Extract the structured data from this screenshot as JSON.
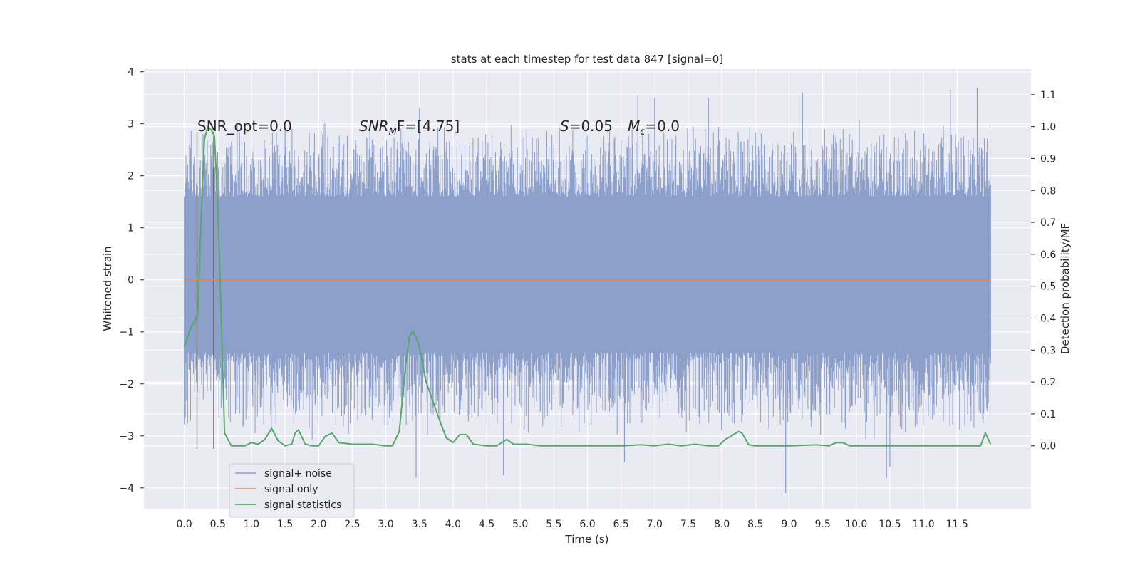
{
  "chart_data": {
    "type": "line",
    "title": "stats at each timestep for test data 847 [signal=0]",
    "xlabel": "Time (s)",
    "ylabel_left": "Whitened strain",
    "ylabel_right": "Detection probability/MF",
    "xlim": [
      -0.6,
      12.6
    ],
    "ylim_left": [
      -4.4,
      4.05
    ],
    "ylim_right": [
      -0.197,
      1.18
    ],
    "x_ticks": [
      "0.0",
      "0.5",
      "1.0",
      "1.5",
      "2.0",
      "2.5",
      "3.0",
      "3.5",
      "4.0",
      "4.5",
      "5.0",
      "5.5",
      "6.0",
      "6.5",
      "7.0",
      "7.5",
      "8.0",
      "8.5",
      "9.0",
      "9.5",
      "10.0",
      "10.5",
      "11.0",
      "11.5"
    ],
    "y_left_ticks": [
      "4",
      "3",
      "2",
      "1",
      "0",
      "−1",
      "−2",
      "−3",
      "−4"
    ],
    "y_right_ticks": [
      "1.1",
      "1.0",
      "0.9",
      "0.8",
      "0.7",
      "0.6",
      "0.5",
      "0.4",
      "0.3",
      "0.2",
      "0.1",
      "0.0"
    ],
    "grid": true,
    "legend_position": "lower-left",
    "annotations": {
      "snr_opt": "SNR_opt=0.0",
      "snr_mf_prefix": "SNR",
      "snr_mf_sub": "M",
      "snr_mf_suffix": "F=[4.75]",
      "s_symbol": "S",
      "s_value": "=0.05",
      "mc_symbol": "M",
      "mc_sub": "c",
      "mc_value": "=0.0"
    },
    "vertical_markers_s": [
      0.19,
      0.44
    ],
    "series": [
      {
        "name": "signal+ noise",
        "color": "#8da0cb",
        "envelope_x": [
          0.0,
          12.0
        ],
        "approx_range": [
          -2.5,
          2.5
        ],
        "peak_spikes": [
          {
            "x": 0.28,
            "y": 2.8
          },
          {
            "x": 1.5,
            "y": 2.9
          },
          {
            "x": 2.07,
            "y": 3.0
          },
          {
            "x": 3.5,
            "y": 3.3
          },
          {
            "x": 6.75,
            "y": 3.55
          },
          {
            "x": 7.0,
            "y": 3.5
          },
          {
            "x": 7.8,
            "y": 3.5
          },
          {
            "x": 9.2,
            "y": 3.6
          },
          {
            "x": 11.4,
            "y": 3.65
          },
          {
            "x": 11.8,
            "y": 3.7
          },
          {
            "x": 3.45,
            "y": -3.8
          },
          {
            "x": 4.75,
            "y": -3.75
          },
          {
            "x": 6.55,
            "y": -3.5
          },
          {
            "x": 8.95,
            "y": -4.1
          },
          {
            "x": 10.45,
            "y": -3.8
          },
          {
            "x": 10.5,
            "y": -3.6
          }
        ]
      },
      {
        "name": "signal only",
        "color": "#dd8452",
        "x": [
          0.0,
          12.0
        ],
        "y": [
          0.0,
          0.0
        ]
      },
      {
        "name": "signal statistics",
        "color": "#55a868",
        "x": [
          0.0,
          0.1,
          0.2,
          0.25,
          0.3,
          0.35,
          0.4,
          0.45,
          0.5,
          0.55,
          0.6,
          0.7,
          0.9,
          1.0,
          1.1,
          1.2,
          1.3,
          1.4,
          1.5,
          1.6,
          1.65,
          1.7,
          1.8,
          1.9,
          2.0,
          2.1,
          2.2,
          2.3,
          2.5,
          2.8,
          3.0,
          3.1,
          3.2,
          3.3,
          3.35,
          3.4,
          3.45,
          3.5,
          3.6,
          3.7,
          3.8,
          3.9,
          4.0,
          4.1,
          4.2,
          4.3,
          4.5,
          4.65,
          4.8,
          4.9,
          5.1,
          5.3,
          6.0,
          6.5,
          6.8,
          7.0,
          7.2,
          7.4,
          7.6,
          7.8,
          7.95,
          8.05,
          8.15,
          8.25,
          8.3,
          8.4,
          8.5,
          8.8,
          9.0,
          9.4,
          9.6,
          9.7,
          9.8,
          9.9,
          10.0,
          10.4,
          10.6,
          11.0,
          11.5,
          11.85,
          11.92,
          12.0
        ],
        "y": [
          0.31,
          0.37,
          0.41,
          0.7,
          0.96,
          1.0,
          0.99,
          0.97,
          0.74,
          0.4,
          0.04,
          0.0,
          0.0,
          0.01,
          0.005,
          0.02,
          0.055,
          0.015,
          0.0,
          0.005,
          0.04,
          0.05,
          0.005,
          0.0,
          0.0,
          0.03,
          0.04,
          0.01,
          0.005,
          0.005,
          0.0,
          0.0,
          0.045,
          0.26,
          0.34,
          0.36,
          0.34,
          0.31,
          0.2,
          0.14,
          0.08,
          0.025,
          0.01,
          0.035,
          0.035,
          0.005,
          0.0,
          0.0,
          0.02,
          0.005,
          0.005,
          0.0,
          0.0,
          0.0,
          0.003,
          0.0,
          0.005,
          0.0,
          0.005,
          0.0,
          0.0,
          0.02,
          0.032,
          0.045,
          0.04,
          0.003,
          0.0,
          0.0,
          0.0,
          0.003,
          0.0,
          0.01,
          0.01,
          0.0,
          0.0,
          0.0,
          0.0,
          0.0,
          0.0,
          0.0,
          0.04,
          0.005
        ]
      }
    ]
  }
}
